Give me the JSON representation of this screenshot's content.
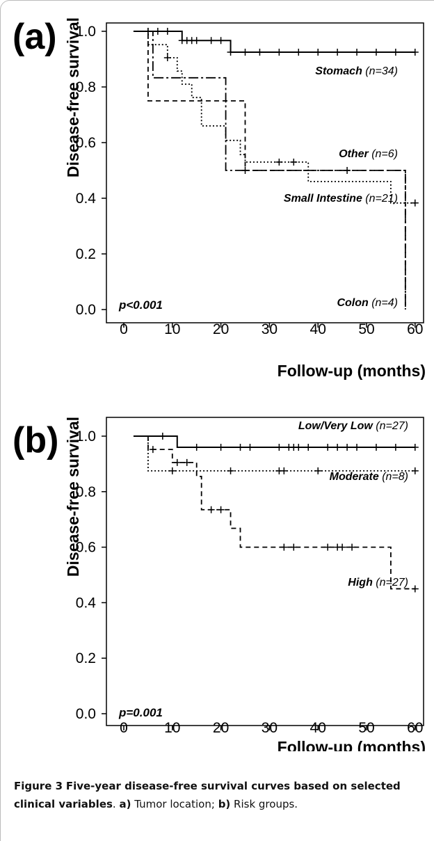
{
  "chart_data": [
    {
      "type": "line",
      "panel_label": "(a)",
      "xlabel": "Follow-up (months)",
      "ylabel": "Disease-free survival",
      "xlim": [
        0,
        62
      ],
      "ylim": [
        0,
        1.0
      ],
      "x_ticks": [
        "0",
        "10",
        "20",
        "30",
        "40",
        "50",
        "60"
      ],
      "y_ticks": [
        "0.0",
        "0.2",
        "0.4",
        "0.6",
        "0.8",
        "1.0"
      ],
      "annotation": "p<0.001",
      "series": [
        {
          "label_name": "Stomach",
          "label_n": "(n=34)",
          "dash": "solid",
          "steps": [
            [
              2,
              1.0
            ],
            [
              12,
              0.967
            ],
            [
              22,
              0.925
            ],
            [
              60,
              0.925
            ]
          ],
          "censor_x": [
            5,
            7,
            9,
            12,
            13,
            14,
            15,
            18,
            20,
            22,
            25,
            28,
            32,
            36,
            40,
            44,
            48,
            52,
            56,
            60
          ]
        },
        {
          "label_name": "Other",
          "label_n": "(n=6)",
          "dash": "long-dash-dot",
          "steps": [
            [
              5,
              1.0
            ],
            [
              6,
              0.833
            ],
            [
              21,
              0.5
            ],
            [
              58,
              0.0
            ]
          ],
          "censor_x": [
            5,
            46
          ]
        },
        {
          "label_name": "Small Intestine",
          "label_n": "(n=21)",
          "dash": "dotted",
          "steps": [
            [
              2,
              1.0
            ],
            [
              5,
              0.952
            ],
            [
              9,
              0.905
            ],
            [
              11,
              0.857
            ],
            [
              12,
              0.81
            ],
            [
              14,
              0.762
            ],
            [
              16,
              0.66
            ],
            [
              21,
              0.608
            ],
            [
              24,
              0.557
            ],
            [
              25,
              0.53
            ],
            [
              38,
              0.46
            ],
            [
              55,
              0.383
            ],
            [
              60,
              0.383
            ]
          ],
          "censor_x": [
            9,
            32,
            35,
            60
          ]
        },
        {
          "label_name": "Colon",
          "label_n": "(n=4)",
          "dash": "dashed",
          "steps": [
            [
              2,
              1.0
            ],
            [
              5,
              0.75
            ],
            [
              15,
              0.75
            ],
            [
              25,
              0.5
            ],
            [
              58,
              0.0
            ]
          ],
          "censor_x": [
            25
          ]
        }
      ]
    },
    {
      "type": "line",
      "panel_label": "(b)",
      "xlabel": "Follow-up (months)",
      "ylabel": "Disease-free survival",
      "xlim": [
        0,
        62
      ],
      "ylim": [
        0,
        1.0
      ],
      "x_ticks": [
        "0",
        "10",
        "20",
        "30",
        "40",
        "50",
        "60"
      ],
      "y_ticks": [
        "0.0",
        "0.2",
        "0.4",
        "0.6",
        "0.8",
        "1.0"
      ],
      "annotation": "p=0.001",
      "series": [
        {
          "label_name": "Low/Very Low",
          "label_n": "(n=27)",
          "dash": "solid",
          "steps": [
            [
              2,
              1.0
            ],
            [
              11,
              0.96
            ],
            [
              60,
              0.96
            ]
          ],
          "censor_x": [
            8,
            15,
            20,
            24,
            26,
            32,
            34,
            35,
            36,
            38,
            42,
            44,
            46,
            48,
            52,
            56,
            60
          ]
        },
        {
          "label_name": "Moderate",
          "label_n": "(n=8)",
          "dash": "dotted",
          "steps": [
            [
              2,
              1.0
            ],
            [
              5,
              0.875
            ],
            [
              60,
              0.875
            ]
          ],
          "censor_x": [
            10,
            22,
            32,
            33,
            40,
            60
          ]
        },
        {
          "label_name": "High",
          "label_n": "(n=27)",
          "dash": "dashed",
          "steps": [
            [
              5,
              1.0
            ],
            [
              5,
              0.952
            ],
            [
              10,
              0.905
            ],
            [
              15,
              0.855
            ],
            [
              16,
              0.735
            ],
            [
              22,
              0.668
            ],
            [
              24,
              0.6
            ],
            [
              55,
              0.45
            ],
            [
              60,
              0.45
            ]
          ],
          "censor_x": [
            6,
            11,
            13,
            18,
            20,
            33,
            35,
            42,
            44,
            45,
            47,
            60
          ]
        }
      ]
    }
  ],
  "caption": {
    "figure_label": "Figure 3",
    "title": "Five-year disease-free survival curves based on selected clinical variables",
    "part_a_label": "a)",
    "part_a_text": " Tumor location; ",
    "part_b_label": "b)",
    "part_b_text": " Risk groups."
  }
}
